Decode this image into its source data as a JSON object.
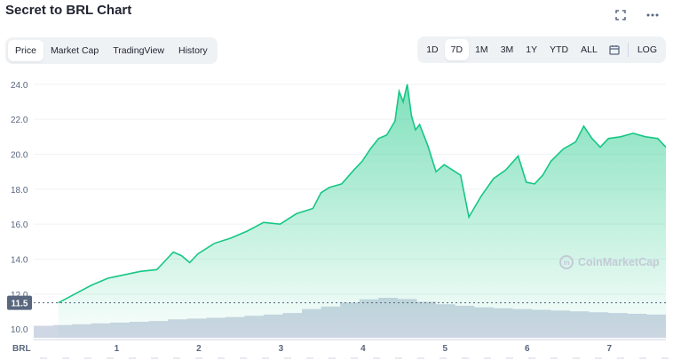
{
  "header": {
    "title": "Secret to BRL Chart",
    "expand_icon": "expand-icon",
    "more_icon": "more-icon"
  },
  "view_tabs": [
    {
      "label": "Price",
      "active": true
    },
    {
      "label": "Market Cap",
      "active": false
    },
    {
      "label": "TradingView",
      "active": false
    },
    {
      "label": "History",
      "active": false
    }
  ],
  "ranges": [
    {
      "label": "1D",
      "active": false
    },
    {
      "label": "7D",
      "active": true
    },
    {
      "label": "1M",
      "active": false
    },
    {
      "label": "3M",
      "active": false
    },
    {
      "label": "1Y",
      "active": false
    },
    {
      "label": "YTD",
      "active": false
    },
    {
      "label": "ALL",
      "active": false
    }
  ],
  "calendar_icon": "calendar-icon",
  "log_label": "LOG",
  "watermark": "CoinMarketCap",
  "colors": {
    "line": "#16c784",
    "volume": "#cfd6e4",
    "grid": "#eff2f5",
    "current_tag": "#58667e"
  },
  "chart_data": {
    "type": "area",
    "currency_label": "BRL",
    "y_ticks": [
      "24.0",
      "22.0",
      "20.0",
      "18.0",
      "16.0",
      "14.0",
      "12.0",
      "10.0"
    ],
    "ylim": [
      9.5,
      24.5
    ],
    "x_ticks": [
      "1",
      "2",
      "3",
      "4",
      "5",
      "6",
      "7"
    ],
    "current_value": "11.5",
    "series": [
      {
        "x": [
          0.3,
          0.5,
          0.7,
          0.9,
          1.1,
          1.3,
          1.5,
          1.6,
          1.7,
          1.8,
          1.9,
          2.0,
          2.2,
          2.4,
          2.6,
          2.8,
          3.0,
          3.2,
          3.4,
          3.5,
          3.6,
          3.75,
          3.9,
          4.0,
          4.1,
          4.2,
          4.3,
          4.4,
          4.45,
          4.5,
          4.55,
          4.6,
          4.65,
          4.7,
          4.8,
          4.9,
          5.0,
          5.1,
          5.2,
          5.3,
          5.35,
          5.45,
          5.6,
          5.75,
          5.9,
          6.0,
          6.1,
          6.2,
          6.3,
          6.45,
          6.6,
          6.7,
          6.8,
          6.9,
          7.0,
          7.15,
          7.3,
          7.45,
          7.6,
          7.7
        ],
        "values": [
          11.5,
          12.0,
          12.5,
          12.9,
          13.1,
          13.3,
          13.4,
          13.9,
          14.4,
          14.2,
          13.8,
          14.3,
          14.9,
          15.2,
          15.6,
          16.1,
          16.0,
          16.6,
          16.9,
          17.8,
          18.1,
          18.3,
          19.1,
          19.6,
          20.3,
          20.9,
          21.1,
          21.9,
          23.6,
          23.0,
          24.0,
          22.2,
          21.4,
          21.7,
          20.5,
          19.0,
          19.4,
          19.1,
          18.8,
          16.4,
          16.8,
          17.6,
          18.6,
          19.1,
          19.9,
          18.4,
          18.3,
          18.8,
          19.6,
          20.3,
          20.7,
          21.6,
          20.9,
          20.4,
          20.9,
          21.0,
          21.2,
          21.0,
          20.9,
          20.4
        ]
      }
    ],
    "volume": [
      0.3,
      0.32,
      0.34,
      0.36,
      0.38,
      0.4,
      0.42,
      0.46,
      0.48,
      0.5,
      0.52,
      0.55,
      0.58,
      0.62,
      0.72,
      0.78,
      0.88,
      0.96,
      1.0,
      0.97,
      0.9,
      0.84,
      0.8,
      0.76,
      0.74,
      0.72,
      0.7,
      0.68,
      0.66,
      0.64,
      0.62,
      0.6,
      0.58
    ]
  }
}
